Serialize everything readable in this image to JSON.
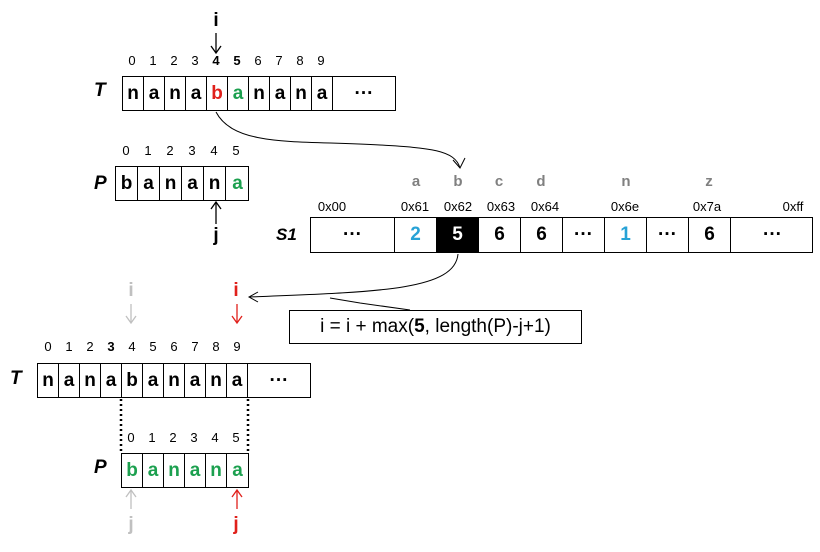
{
  "colors": {
    "mismatch": "#e0201b",
    "match": "#1ca04f",
    "table_value": "#27a2d6",
    "faded": "#c0c0c0",
    "pointer_new": "#e0201b",
    "highlight_bg": "#000000",
    "highlight_fg": "#ffffff"
  },
  "top_text": {
    "label": "T",
    "pointer": "i",
    "indices": [
      "0",
      "1",
      "2",
      "3",
      "4",
      "5",
      "6",
      "7",
      "8",
      "9"
    ],
    "chars": [
      "n",
      "a",
      "n",
      "a",
      "b",
      "a",
      "n",
      "a",
      "n",
      "a"
    ],
    "ellipsis": "···"
  },
  "top_pattern": {
    "label": "P",
    "pointer": "j",
    "indices": [
      "0",
      "1",
      "2",
      "3",
      "4",
      "5"
    ],
    "chars": [
      "b",
      "a",
      "n",
      "a",
      "n",
      "a"
    ]
  },
  "shift_table": {
    "label": "S1",
    "letters": [
      "a",
      "b",
      "c",
      "d",
      "n",
      "z"
    ],
    "addresses": [
      "0x00",
      "0x61",
      "0x62",
      "0x63",
      "0x64",
      "0x6e",
      "0x7a",
      "0xff"
    ],
    "cells": [
      "···",
      "2",
      "5",
      "6",
      "6",
      "···",
      "1",
      "···",
      "6",
      "···"
    ]
  },
  "formula": {
    "prefix": "i = i + max(",
    "bold": "5",
    "suffix": ", length(P)-j+1)"
  },
  "bottom_text": {
    "label": "T",
    "old_pointer": "i",
    "new_pointer": "i",
    "indices": [
      "0",
      "1",
      "2",
      "3",
      "4",
      "5",
      "6",
      "7",
      "8",
      "9"
    ],
    "chars": [
      "n",
      "a",
      "n",
      "a",
      "b",
      "a",
      "n",
      "a",
      "n",
      "a"
    ],
    "ellipsis": "···"
  },
  "bottom_pattern": {
    "label": "P",
    "old_pointer": "j",
    "new_pointer": "j",
    "indices": [
      "0",
      "1",
      "2",
      "3",
      "4",
      "5"
    ],
    "chars": [
      "b",
      "a",
      "n",
      "a",
      "n",
      "a"
    ]
  }
}
